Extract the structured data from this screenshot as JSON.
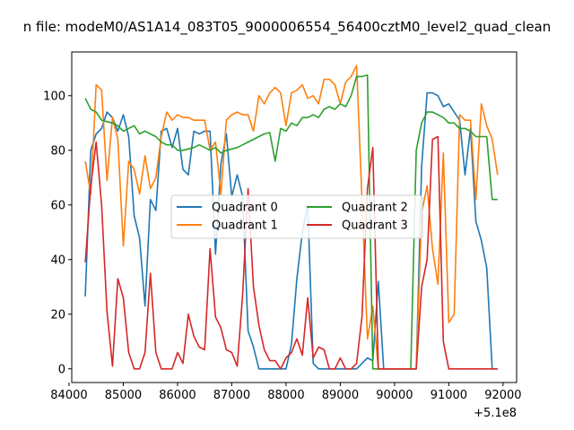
{
  "chart_data": {
    "type": "line",
    "title": "n file: modeM0/AS1A14_083T05_9000006554_56400cztM0_level2_quad_clean",
    "xlabel": "",
    "ylabel": "",
    "x_offset_label": "+5.1e8",
    "xlim": [
      84050,
      92250
    ],
    "ylim": [
      -5,
      116
    ],
    "x_ticks": [
      84000,
      85000,
      86000,
      87000,
      88000,
      89000,
      90000,
      91000,
      92000
    ],
    "x_tick_labels": [
      "84000",
      "85000",
      "86000",
      "87000",
      "88000",
      "89000",
      "90000",
      "91000",
      "92000"
    ],
    "y_ticks": [
      0,
      20,
      40,
      60,
      80,
      100
    ],
    "y_tick_labels": [
      "0",
      "20",
      "40",
      "60",
      "80",
      "100"
    ],
    "grid": false,
    "legend": {
      "placement": "center",
      "columns": 2
    },
    "series": [
      {
        "name": "Quadrant 0",
        "color": "#1f77b4",
        "x": [
          84300,
          84400,
          84500,
          84600,
          84700,
          84800,
          84900,
          85000,
          85100,
          85200,
          85300,
          85400,
          85500,
          85600,
          85700,
          85800,
          85900,
          86000,
          86100,
          86200,
          86300,
          86400,
          86500,
          86600,
          86700,
          86800,
          86900,
          87000,
          87100,
          87200,
          87300,
          87400,
          87500,
          87600,
          87700,
          87800,
          87900,
          88000,
          88100,
          88200,
          88300,
          88400,
          88500,
          88600,
          88700,
          88800,
          88900,
          89000,
          89100,
          89200,
          89300,
          89400,
          89500,
          89600,
          89700,
          89800,
          89900,
          90000,
          90100,
          90200,
          90300,
          90400,
          90500,
          90600,
          90700,
          90800,
          90900,
          91000,
          91100,
          91200,
          91300,
          91400,
          91500,
          91600,
          91700,
          91800,
          91900
        ],
        "y": [
          26.5,
          80,
          86,
          88,
          94,
          92,
          87,
          93,
          85,
          56,
          48,
          23,
          62,
          58,
          87,
          88,
          81,
          88,
          73,
          71,
          87,
          86,
          87,
          87,
          42,
          75,
          86,
          63,
          71,
          63,
          14,
          8,
          0,
          0,
          0,
          0,
          0,
          0,
          9,
          33,
          50,
          60,
          2,
          0,
          0,
          0,
          0,
          0,
          0,
          0,
          0,
          2,
          4,
          3,
          32,
          0,
          0,
          0,
          0,
          0,
          0,
          0,
          74,
          101,
          101,
          100,
          96,
          97,
          94,
          91,
          71,
          88,
          54,
          47,
          37,
          0,
          0
        ]
      },
      {
        "name": "Quadrant 1",
        "color": "#ff7f0e",
        "x": [
          84300,
          84400,
          84500,
          84600,
          84700,
          84800,
          84900,
          85000,
          85100,
          85200,
          85300,
          85400,
          85500,
          85600,
          85700,
          85800,
          85900,
          86000,
          86100,
          86200,
          86300,
          86400,
          86500,
          86600,
          86700,
          86800,
          86900,
          87000,
          87100,
          87200,
          87300,
          87400,
          87500,
          87600,
          87700,
          87800,
          87900,
          88000,
          88100,
          88200,
          88300,
          88400,
          88500,
          88600,
          88700,
          88800,
          88900,
          89000,
          89100,
          89200,
          89300,
          89400,
          89500,
          89600,
          89700,
          89800,
          89900,
          90000,
          90100,
          90200,
          90300,
          90400,
          90500,
          90600,
          90700,
          90800,
          90900,
          91000,
          91100,
          91200,
          91300,
          91400,
          91500,
          91600,
          91700,
          91800,
          91900
        ],
        "y": [
          76,
          64,
          104,
          102,
          69,
          92,
          84,
          45,
          76,
          73,
          64,
          78,
          66,
          70,
          85,
          94,
          91,
          93,
          92,
          92,
          91,
          91,
          91,
          80,
          83,
          64,
          91,
          93,
          94,
          93,
          93,
          87,
          100,
          97,
          101,
          103,
          101,
          89,
          101,
          102,
          104,
          99,
          100,
          97,
          106,
          106,
          104,
          97,
          105,
          107,
          111,
          62,
          11,
          23,
          0,
          0,
          0,
          0,
          0,
          0,
          0,
          0,
          57,
          67,
          44,
          31,
          79,
          17,
          20,
          93,
          91,
          91,
          62,
          97,
          89,
          84,
          71
        ]
      },
      {
        "name": "Quadrant 2",
        "color": "#2ca02c",
        "x": [
          84300,
          84400,
          84500,
          84600,
          84700,
          84800,
          84900,
          85000,
          85100,
          85200,
          85300,
          85400,
          85500,
          85600,
          85700,
          85800,
          85900,
          86000,
          86100,
          86200,
          86300,
          86400,
          86500,
          86600,
          86700,
          86800,
          86900,
          87000,
          87100,
          87200,
          87300,
          87400,
          87500,
          87600,
          87700,
          87800,
          87900,
          88000,
          88100,
          88200,
          88300,
          88400,
          88500,
          88600,
          88700,
          88800,
          88900,
          89000,
          89100,
          89200,
          89300,
          89400,
          89500,
          89600,
          89700,
          89800,
          89900,
          90000,
          90100,
          90200,
          90300,
          90400,
          90500,
          90600,
          90700,
          90800,
          90900,
          91000,
          91100,
          91200,
          91300,
          91400,
          91500,
          91600,
          91700,
          91800,
          91900
        ],
        "y": [
          99,
          95,
          94,
          91,
          90.5,
          90,
          89,
          87,
          88,
          89,
          86,
          87,
          86,
          85,
          83,
          82,
          82,
          80,
          80,
          80.5,
          81,
          82,
          81,
          80,
          81,
          79,
          80,
          80.5,
          81,
          82,
          83,
          84,
          85,
          86,
          86.5,
          76,
          88,
          87,
          90,
          89,
          92,
          92,
          93,
          92,
          95,
          96,
          95,
          97,
          96,
          100,
          107,
          107,
          107.5,
          0,
          0,
          0,
          0,
          0,
          0,
          0,
          0,
          80,
          90,
          94,
          94,
          93,
          92,
          90,
          90,
          88,
          88,
          87,
          85,
          85,
          85,
          62,
          62
        ]
      },
      {
        "name": "Quadrant 3",
        "color": "#d62728",
        "x": [
          84300,
          84400,
          84500,
          84600,
          84700,
          84800,
          84900,
          85000,
          85100,
          85200,
          85300,
          85400,
          85500,
          85600,
          85700,
          85800,
          85900,
          86000,
          86100,
          86200,
          86300,
          86400,
          86500,
          86600,
          86700,
          86800,
          86900,
          87000,
          87100,
          87200,
          87300,
          87400,
          87500,
          87600,
          87700,
          87800,
          87900,
          88000,
          88100,
          88200,
          88300,
          88400,
          88500,
          88600,
          88700,
          88800,
          88900,
          89000,
          89100,
          89200,
          89300,
          89400,
          89500,
          89600,
          89700,
          89800,
          89900,
          90000,
          90100,
          90200,
          90300,
          90400,
          90500,
          90600,
          90700,
          90800,
          90900,
          91000,
          91100,
          91200,
          91300,
          91400,
          91500,
          91600,
          91700,
          91800,
          91900
        ],
        "y": [
          39,
          67,
          83,
          60,
          21,
          1,
          33,
          26,
          6,
          0,
          0,
          6,
          35,
          6,
          0,
          0,
          0,
          6,
          2,
          20,
          12,
          8,
          7,
          44,
          19,
          15,
          7,
          6,
          1,
          27,
          66,
          30,
          16,
          7,
          3,
          3,
          0,
          4,
          6,
          11,
          5,
          26,
          4,
          8,
          7,
          0,
          0,
          4,
          0,
          0,
          2,
          19,
          66,
          81,
          0,
          0,
          0,
          0,
          0,
          0,
          0,
          0,
          30,
          40,
          84,
          85,
          10,
          0,
          0,
          0,
          0,
          0,
          0,
          0,
          0,
          0,
          0
        ]
      }
    ]
  }
}
